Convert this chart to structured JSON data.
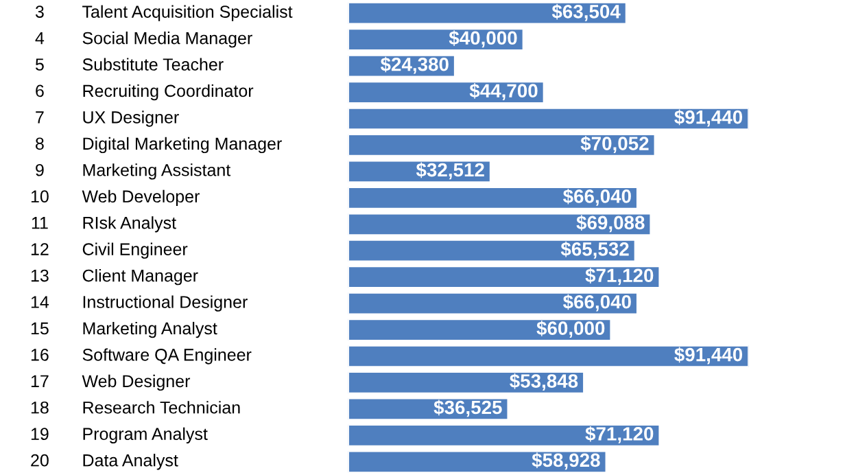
{
  "chart_data": {
    "type": "bar",
    "orientation": "horizontal",
    "categories": [
      "Talent Acquisition Specialist",
      "Social Media Manager",
      "Substitute Teacher",
      "Recruiting Coordinator",
      "UX Designer",
      "Digital Marketing Manager",
      "Marketing Assistant",
      "Web Developer",
      "RIsk Analyst",
      "Civil Engineer",
      "Client Manager",
      "Instructional Designer",
      "Marketing Analyst",
      "Software QA Engineer",
      "Web Designer",
      "Research Technician",
      "Program Analyst",
      "Data Analyst"
    ],
    "y2_categories": [
      "3",
      "4",
      "5",
      "6",
      "7",
      "8",
      "9",
      "10",
      "11",
      "12",
      "13",
      "14",
      "15",
      "16",
      "17",
      "18",
      "19",
      "20"
    ],
    "values": [
      63504,
      40000,
      24380,
      44700,
      91440,
      70052,
      32512,
      66040,
      69088,
      65532,
      71120,
      66040,
      60000,
      91440,
      53848,
      36525,
      71120,
      58928
    ],
    "value_labels": [
      "$63,504",
      "$40,000",
      "$24,380",
      "$44,700",
      "$91,440",
      "$70,052",
      "$32,512",
      "$66,040",
      "$69,088",
      "$65,532",
      "$71,120",
      "$66,040",
      "$60,000",
      "$91,440",
      "$53,848",
      "$36,525",
      "$71,120",
      "$58,928"
    ],
    "color": "#4f7fbf",
    "tick_labels": false
  }
}
